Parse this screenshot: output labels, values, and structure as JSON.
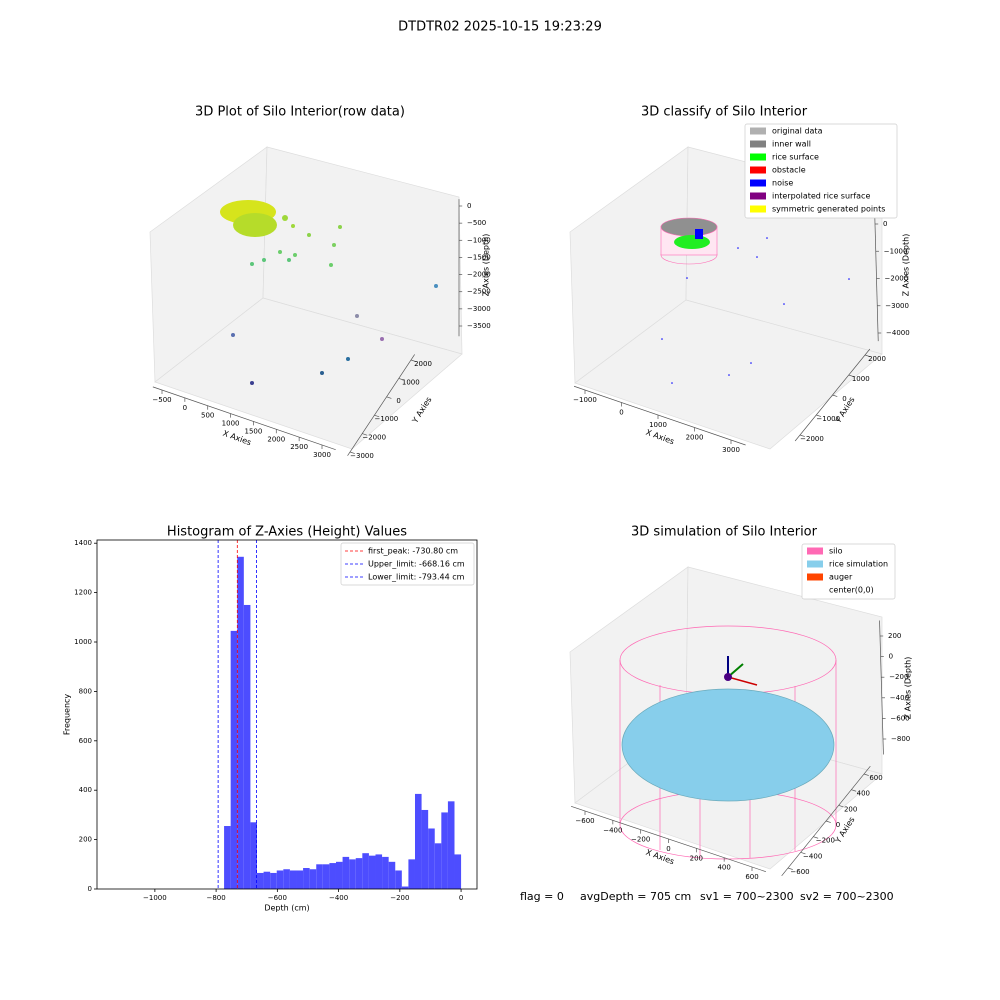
{
  "suptitle": "DTDTR02 2025-10-15 19:23:29",
  "footer": [
    "flag = 0",
    "avgDepth = 705 cm",
    "sv1 = 700~2300",
    "sv2 = 700~2300"
  ],
  "chart_data": [
    {
      "type": "scatter3d",
      "title": "3D Plot of Silo Interior(row data)",
      "xlabel": "X Axies",
      "ylabel": "Y Axies",
      "zlabel": "Z Axies (Depth)",
      "xlim": [
        -700,
        3300
      ],
      "ylim": [
        -3200,
        2300
      ],
      "zlim": [
        -3800,
        200
      ],
      "xticks": [
        {
          "value": -500,
          "label": "−500"
        },
        0,
        500,
        1000,
        1500,
        2000,
        2500,
        3000
      ],
      "yticks": [
        {
          "value": -3000,
          "label": "−3000"
        },
        {
          "value": -2000,
          "label": "−2000"
        },
        {
          "value": -1000,
          "label": "−1000"
        },
        0,
        1000,
        2000
      ],
      "zticks": [
        0,
        {
          "value": -500,
          "label": "−500"
        },
        {
          "value": -1000,
          "label": "−1000"
        },
        {
          "value": -1500,
          "label": "−1500"
        },
        {
          "value": -2000,
          "label": "−2000"
        },
        {
          "value": -2500,
          "label": "−2500"
        },
        {
          "value": -3000,
          "label": "−3000"
        },
        {
          "value": -3500,
          "label": "−3500"
        }
      ]
    },
    {
      "type": "scatter3d",
      "title": "3D classify of Silo Interior",
      "xlabel": "X Axies",
      "ylabel": "Y Axies",
      "zlabel": "Z Axies (Depth)",
      "xlim": [
        -1300,
        3400
      ],
      "ylim": [
        -2300,
        2300
      ],
      "zlim": [
        -4300,
        300
      ],
      "xticks": [
        {
          "value": -1000,
          "label": "−1000"
        },
        0,
        1000,
        2000,
        3000
      ],
      "yticks": [
        {
          "value": -2000,
          "label": "−2000"
        },
        {
          "value": -1000,
          "label": "−1000"
        },
        0,
        1000,
        2000
      ],
      "zticks": [
        0,
        {
          "value": -1000,
          "label": "−1000"
        },
        {
          "value": -2000,
          "label": "−2000"
        },
        {
          "value": -3000,
          "label": "−3000"
        },
        {
          "value": -4000,
          "label": "−4000"
        }
      ],
      "legend": [
        {
          "name": "original data",
          "color": "#b0b0b0"
        },
        {
          "name": "inner wall",
          "color": "#808080"
        },
        {
          "name": "rice surface",
          "color": "#00ff00"
        },
        {
          "name": "obstacle",
          "color": "#ff0000"
        },
        {
          "name": "noise",
          "color": "#0000ff"
        },
        {
          "name": "interpolated rice surface",
          "color": "#800080"
        },
        {
          "name": "symmetric generated points",
          "color": "#ffff00"
        }
      ]
    },
    {
      "type": "histogram",
      "title": "Histogram of Z-Axies (Height) Values",
      "xlabel": "Depth (cm)",
      "ylabel": "Frequency",
      "color": "#4d4dff",
      "bins": [
        -774,
        -752.5,
        -731,
        -709.5,
        -688,
        -666.5,
        -645,
        -623.5,
        -602,
        -580.5,
        -559,
        -537.5,
        -516,
        -494.5,
        -473,
        -451.5,
        -430,
        -408.5,
        -387,
        -365.5,
        -344,
        -322.5,
        -301,
        -279.5,
        -258,
        -236.5,
        -215,
        -193.5,
        -172,
        -150.5,
        -129,
        -107.5,
        -86,
        -64.5,
        -43,
        -21.5,
        0
      ],
      "counts": [
        255,
        1045,
        1345,
        1150,
        270,
        65,
        70,
        65,
        75,
        80,
        75,
        75,
        85,
        80,
        100,
        100,
        105,
        110,
        130,
        120,
        125,
        145,
        135,
        140,
        130,
        110,
        75,
        10,
        120,
        385,
        320,
        245,
        185,
        310,
        355,
        140
      ],
      "xlim": [
        -1189,
        52
      ],
      "ylim": [
        0,
        1413
      ],
      "xticks": [
        {
          "value": -1000,
          "label": "−1000"
        },
        {
          "value": -800,
          "label": "−800"
        },
        {
          "value": -600,
          "label": "−600"
        },
        {
          "value": -400,
          "label": "−400"
        },
        {
          "value": -200,
          "label": "−200"
        },
        0
      ],
      "yticks": [
        0,
        200,
        400,
        600,
        800,
        1000,
        1200,
        1400
      ],
      "vlines": [
        {
          "value": -730.8,
          "label": "first_peak: -730.80 cm",
          "color": "#ff0000"
        },
        {
          "value": -668.16,
          "label": "Upper_limit: -668.16 cm",
          "color": "#0000ff"
        },
        {
          "value": -793.44,
          "label": "Lower_limit: -793.44 cm",
          "color": "#0000ff"
        }
      ]
    },
    {
      "type": "surface3d",
      "title": "3D simulation of Silo Interior",
      "xlabel": "X Axies",
      "ylabel": "Y Axies",
      "zlabel": "Z Axies (Depth)",
      "xlim": [
        -700,
        700
      ],
      "ylim": [
        -700,
        700
      ],
      "zlim": [
        -950,
        350
      ],
      "xticks": [
        {
          "value": -600,
          "label": "−600"
        },
        {
          "value": -400,
          "label": "−400"
        },
        {
          "value": -200,
          "label": "−200"
        },
        0,
        200,
        400,
        600
      ],
      "yticks": [
        {
          "value": -600,
          "label": "−600"
        },
        {
          "value": -400,
          "label": "−400"
        },
        {
          "value": -200,
          "label": "−200"
        },
        0,
        200,
        400,
        600
      ],
      "zticks": [
        200,
        0,
        {
          "value": -200,
          "label": "−200"
        },
        {
          "value": -400,
          "label": "−400"
        },
        {
          "value": -600,
          "label": "−600"
        },
        {
          "value": -800,
          "label": "−800"
        }
      ],
      "legend": [
        {
          "name": "silo",
          "color": "#ff69b4"
        },
        {
          "name": "rice simulation",
          "color": "#87ceeb"
        },
        {
          "name": "auger",
          "color": "#ff4500"
        },
        {
          "name": "center(0,0)",
          "color": "#ffffff"
        }
      ]
    }
  ]
}
